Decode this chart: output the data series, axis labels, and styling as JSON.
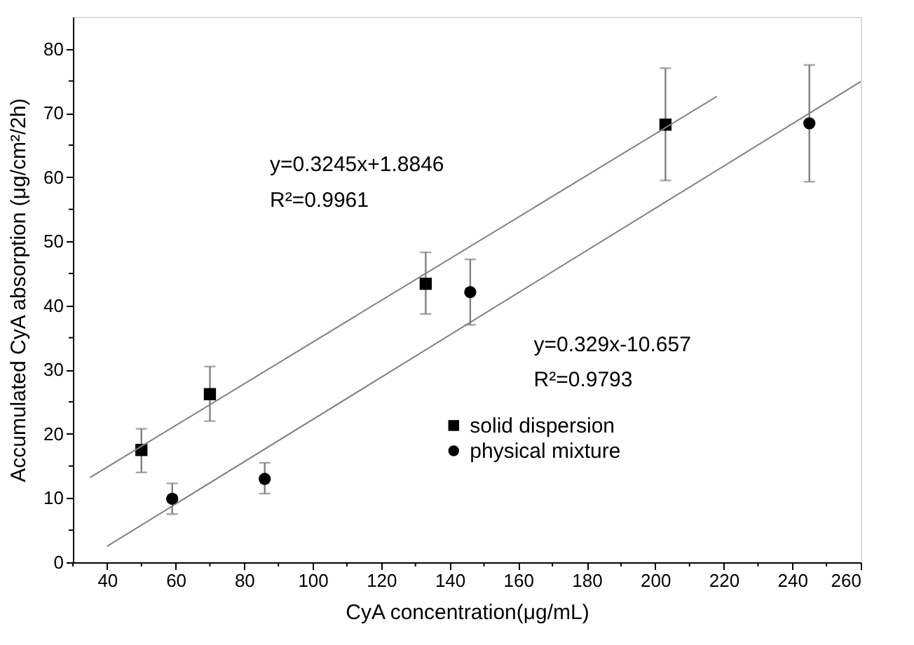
{
  "chart_data": {
    "type": "scatter",
    "xlabel": "CyA concentration(μg/mL)",
    "ylabel": "Accumulated CyA absorption (μg/cm²/2h)",
    "xlim": [
      30,
      260
    ],
    "ylim": [
      0,
      85
    ],
    "xticks": [
      {
        "value": 30,
        "label": null
      },
      40,
      {
        "value": 50,
        "label": null
      },
      60,
      {
        "value": 70,
        "label": null
      },
      80,
      {
        "value": 90,
        "label": null
      },
      100,
      {
        "value": 110,
        "label": null
      },
      120,
      {
        "value": 130,
        "label": null
      },
      140,
      {
        "value": 150,
        "label": null
      },
      160,
      {
        "value": 170,
        "label": null
      },
      180,
      {
        "value": 190,
        "label": null
      },
      200,
      {
        "value": 210,
        "label": null
      },
      220,
      {
        "value": 230,
        "label": null
      },
      240,
      {
        "value": 250,
        "label": null
      },
      260
    ],
    "yticks": [
      0,
      {
        "value": 5,
        "label": null
      },
      10,
      {
        "value": 15,
        "label": null
      },
      20,
      {
        "value": 25,
        "label": null
      },
      30,
      {
        "value": 35,
        "label": null
      },
      40,
      {
        "value": 45,
        "label": null
      },
      50,
      {
        "value": 55,
        "label": null
      },
      60,
      {
        "value": 65,
        "label": null
      },
      70,
      {
        "value": 75,
        "label": null
      },
      80
    ],
    "grid": false,
    "legend": "bottom right",
    "series": [
      {
        "name": "solid dispersion",
        "type": "scatter",
        "marker": "square",
        "color": "#000000",
        "x": [
          50,
          70,
          133,
          203
        ],
        "values": [
          17.5,
          26.2,
          43.4,
          68.2
        ],
        "errors": [
          [
            14.0,
            20.8
          ],
          [
            22.0,
            30.5
          ],
          [
            38.7,
            48.3
          ],
          [
            59.5,
            77.0
          ]
        ]
      },
      {
        "name": "physical mixture",
        "type": "scatter",
        "marker": "circle",
        "color": "#000000",
        "x": [
          59,
          86,
          146,
          245
        ],
        "values": [
          9.9,
          13.0,
          42.1,
          68.4
        ],
        "errors": [
          [
            7.5,
            12.3
          ],
          [
            10.7,
            15.5
          ],
          [
            37.0,
            47.2
          ],
          [
            59.3,
            77.5
          ]
        ]
      },
      {
        "type": "line",
        "color": "#808080",
        "x": [
          35,
          218
        ],
        "values": [
          13.2,
          72.6
        ]
      },
      {
        "type": "line",
        "color": "#808080",
        "x": [
          40,
          260
        ],
        "values": [
          2.5,
          74.9
        ]
      }
    ],
    "annotations": [
      "y=0.3245x+1.8846",
      "R²=0.9961",
      "y=0.329x-10.657",
      "R²=0.9793"
    ]
  }
}
